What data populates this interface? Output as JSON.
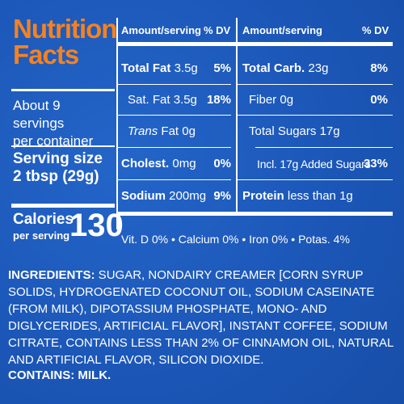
{
  "panel": {
    "title_line1": "Nutrition",
    "title_line2": "Facts",
    "servings_line1": "About 9 servings",
    "servings_line2": "per container",
    "serving_size_label": "Serving size",
    "serving_size_value": "2 tbsp (29g)",
    "calories_label": "Calories",
    "calories_per": "per serving",
    "calories_value": "130"
  },
  "headers": {
    "left_amount": "Amount/serving",
    "left_dv": "% DV",
    "right_amount": "Amount/serving",
    "right_dv": "% DV"
  },
  "left_rows": [
    {
      "name": "Total Fat",
      "amount": "3.5g",
      "dv": "5%"
    },
    {
      "name": "Sat. Fat",
      "amount": "3.5g",
      "dv": "18%"
    },
    {
      "name": "Trans",
      "amount": "Fat 0g",
      "dv": ""
    },
    {
      "name": "Cholest.",
      "amount": "0mg",
      "dv": "0%"
    },
    {
      "name": "Sodium",
      "amount": "200mg",
      "dv": "9%"
    }
  ],
  "right_rows": [
    {
      "name": "Total Carb.",
      "amount": "23g",
      "dv": "8%"
    },
    {
      "name": "Fiber",
      "amount": "0g",
      "dv": "0%"
    },
    {
      "name": "Total Sugars",
      "amount": "17g",
      "dv": ""
    },
    {
      "name": "Incl. 17g Added Sugars",
      "amount": "",
      "dv": "33%"
    },
    {
      "name": "Protein",
      "amount": "less than 1g",
      "dv": ""
    }
  ],
  "vitamins": "Vit. D 0% • Calcium 0% • Iron 0% • Potas. 4%",
  "ingredients_label": "INGREDIENTS:",
  "ingredients_text": " SUGAR, NONDAIRY CREAMER [CORN SYRUP SOLIDS, HYDROGENATED COCONUT OIL, SODIUM CASEINATE (FROM MILK), DIPOTASSIUM PHOSPHATE, MONO- AND DIGLYCERIDES, ARTIFICIAL FLAVOR], INSTANT COFFEE, SODIUM CITRATE, CONTAINS LESS THAN 2% OF CINNAMON OIL, NATURAL AND ARTIFICIAL FLAVOR, SILICON DIOXIDE.",
  "contains": "CONTAINS: MILK.",
  "colors": {
    "background": "#1f5bbd",
    "title": "#f58220",
    "text": "#ffffff"
  }
}
